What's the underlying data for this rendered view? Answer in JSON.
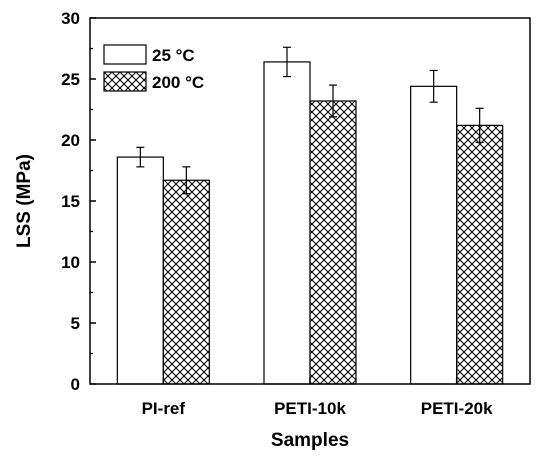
{
  "chart_data": {
    "type": "bar",
    "title": "",
    "xlabel": "Samples",
    "ylabel": "LSS (MPa)",
    "categories": [
      "PI-ref",
      "PETI-10k",
      "PETI-20k"
    ],
    "ylim": [
      0,
      30
    ],
    "yticks": [
      0,
      5,
      10,
      15,
      20,
      25,
      30
    ],
    "legend_position": "top-left",
    "grid": false,
    "series": [
      {
        "name": "25 °C",
        "values": [
          18.6,
          26.4,
          24.4
        ],
        "errors": [
          0.8,
          1.2,
          1.3
        ],
        "pattern": "none",
        "fill": "#ffffff"
      },
      {
        "name": "200 °C",
        "values": [
          16.7,
          23.2,
          21.2
        ],
        "errors": [
          1.1,
          1.3,
          1.4
        ],
        "pattern": "crosshatch",
        "fill": "#ffffff"
      }
    ],
    "colors": {
      "axis": "#000000",
      "bar_stroke": "#000000",
      "hatch": "#000000"
    }
  }
}
